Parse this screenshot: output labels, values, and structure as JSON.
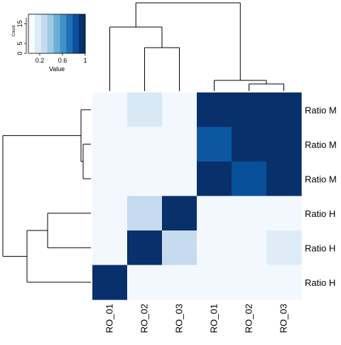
{
  "chart_data": {
    "type": "heatmap",
    "title": "",
    "xlabel": "",
    "ylabel": "",
    "columns": [
      "RO_01",
      "RO_02",
      "RO_03",
      "RO_01",
      "RO_02",
      "RO_03"
    ],
    "rows": [
      "Ratio M",
      "Ratio M",
      "Ratio M",
      "Ratio H",
      "Ratio H",
      "Ratio H"
    ],
    "values": [
      [
        0.02,
        0.15,
        0.02,
        1.0,
        1.0,
        1.0
      ],
      [
        0.02,
        0.02,
        0.02,
        0.85,
        1.0,
        1.0
      ],
      [
        0.02,
        0.02,
        0.02,
        1.0,
        0.88,
        1.0
      ],
      [
        0.02,
        0.25,
        1.0,
        0.02,
        0.02,
        0.02
      ],
      [
        0.02,
        1.0,
        0.25,
        0.02,
        0.02,
        0.12
      ],
      [
        1.0,
        0.02,
        0.02,
        0.02,
        0.02,
        0.02
      ]
    ],
    "color_range": [
      0,
      1
    ],
    "colors": [
      "#F7FBFF",
      "#DEEBF7",
      "#C6DBEF",
      "#9ECAE1",
      "#6BAED6",
      "#4292C6",
      "#2171B5",
      "#08519C",
      "#08306B"
    ],
    "color_key": {
      "xlabel": "Value",
      "ylabel": "Count",
      "x_ticks": [
        "0.2",
        "0.6",
        "1"
      ],
      "y_ticks": [
        "0",
        "5",
        "15"
      ]
    }
  }
}
